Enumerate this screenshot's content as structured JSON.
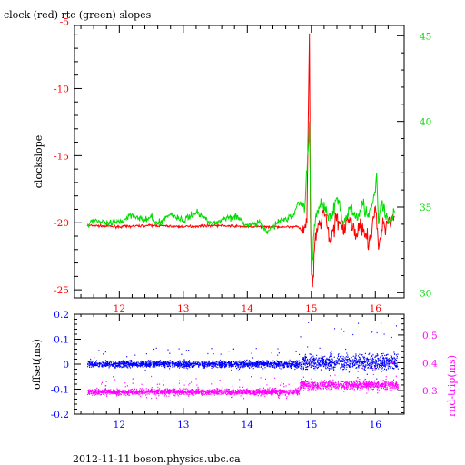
{
  "title": "clock (red) rtc (green) slopes",
  "footer": "2012-11-11 boson.physics.ubc.ca",
  "colors": {
    "clock": "#ff0000",
    "rtc": "#00dd00",
    "offset": "#0000ff",
    "rndtrip": "#ff00ff",
    "frame": "#000000"
  },
  "chart_data": [
    {
      "type": "line",
      "title": "clock (red) rtc (green) slopes",
      "ylabel": "clockslope",
      "y2label": "",
      "x_ticks": [
        12,
        13,
        14,
        15,
        16
      ],
      "xlim": [
        11.3,
        16.45
      ],
      "ylim": [
        -25.6,
        -5.3
      ],
      "y_ticks": [
        -25,
        -20,
        -15,
        -10,
        -5
      ],
      "y2lim": [
        29.7,
        45.6
      ],
      "y2_ticks": [
        30,
        35,
        40,
        45
      ],
      "series": [
        {
          "color": "#ff0000",
          "axis": "left",
          "x": [
            11.5,
            12.0,
            12.5,
            13.0,
            13.5,
            14.0,
            14.5,
            14.8,
            14.88,
            14.93,
            14.97,
            14.985,
            15.0,
            15.02,
            15.05,
            15.1,
            15.2,
            15.3,
            15.4,
            15.5,
            15.6,
            15.7,
            15.8,
            15.9,
            16.0,
            16.05,
            16.1,
            16.2,
            16.3
          ],
          "y": [
            -20.2,
            -20.3,
            -20.2,
            -20.3,
            -20.2,
            -20.3,
            -20.3,
            -20.3,
            -20.8,
            -20.0,
            -5.9,
            -19.5,
            -23.5,
            -24.8,
            -22.0,
            -20.5,
            -19.2,
            -21.5,
            -19.4,
            -20.8,
            -19.6,
            -21.0,
            -20.0,
            -21.6,
            -18.8,
            -22.0,
            -20.5,
            -19.8,
            -19.5
          ]
        },
        {
          "color": "#00dd00",
          "axis": "right",
          "x": [
            11.5,
            11.6,
            11.8,
            12.0,
            12.2,
            12.4,
            12.5,
            12.6,
            12.8,
            13.0,
            13.2,
            13.4,
            13.5,
            13.6,
            13.8,
            14.0,
            14.2,
            14.3,
            14.5,
            14.7,
            14.8,
            14.9,
            14.95,
            14.97,
            14.99,
            15.0,
            15.05,
            15.1,
            15.2,
            15.3,
            15.4,
            15.5,
            15.6,
            15.7,
            15.8,
            15.9,
            16.0,
            16.02,
            16.05,
            16.1,
            16.2,
            16.3
          ],
          "y": [
            33.9,
            34.3,
            34.0,
            34.1,
            34.6,
            34.2,
            34.4,
            34.0,
            34.6,
            34.2,
            34.7,
            34.2,
            34.0,
            34.3,
            34.5,
            33.9,
            34.1,
            33.5,
            34.2,
            34.4,
            35.3,
            35.0,
            38.3,
            40.0,
            34.2,
            31.0,
            34.0,
            34.8,
            35.3,
            34.2,
            35.5,
            34.0,
            35.0,
            34.5,
            35.2,
            34.4,
            35.8,
            37.0,
            34.0,
            35.3,
            34.0,
            34.7
          ]
        }
      ]
    },
    {
      "type": "scatter",
      "ylabel": "offset(ms)",
      "y2label": "rnd-trip(ms)",
      "x_ticks": [
        12,
        13,
        14,
        15,
        16
      ],
      "xlim": [
        11.3,
        16.45
      ],
      "ylim": [
        -0.2,
        0.2
      ],
      "y_ticks": [
        -0.2,
        -0.1,
        0,
        0.1,
        0.2
      ],
      "y2lim": [
        0.215,
        0.575
      ],
      "y2_ticks": [
        0.3,
        0.4,
        0.5
      ],
      "series": [
        {
          "color": "#0000ff",
          "axis": "left",
          "x_range": [
            11.5,
            16.35
          ],
          "level": [
            [
              11.5,
              0.0
            ],
            [
              14.8,
              0.0
            ],
            [
              14.83,
              0.008
            ],
            [
              16.35,
              0.008
            ]
          ],
          "spread": [
            [
              11.5,
              0.012
            ],
            [
              14.8,
              0.012
            ],
            [
              14.83,
              0.03
            ],
            [
              16.35,
              0.03
            ]
          ]
        },
        {
          "color": "#ff00ff",
          "axis": "right",
          "x_range": [
            11.5,
            16.35
          ],
          "level": [
            [
              11.5,
              0.295
            ],
            [
              14.8,
              0.295
            ],
            [
              14.83,
              0.32
            ],
            [
              16.35,
              0.32
            ]
          ],
          "spread": [
            [
              11.5,
              0.01
            ],
            [
              14.8,
              0.01
            ],
            [
              14.83,
              0.015
            ],
            [
              16.35,
              0.015
            ]
          ]
        }
      ]
    }
  ]
}
